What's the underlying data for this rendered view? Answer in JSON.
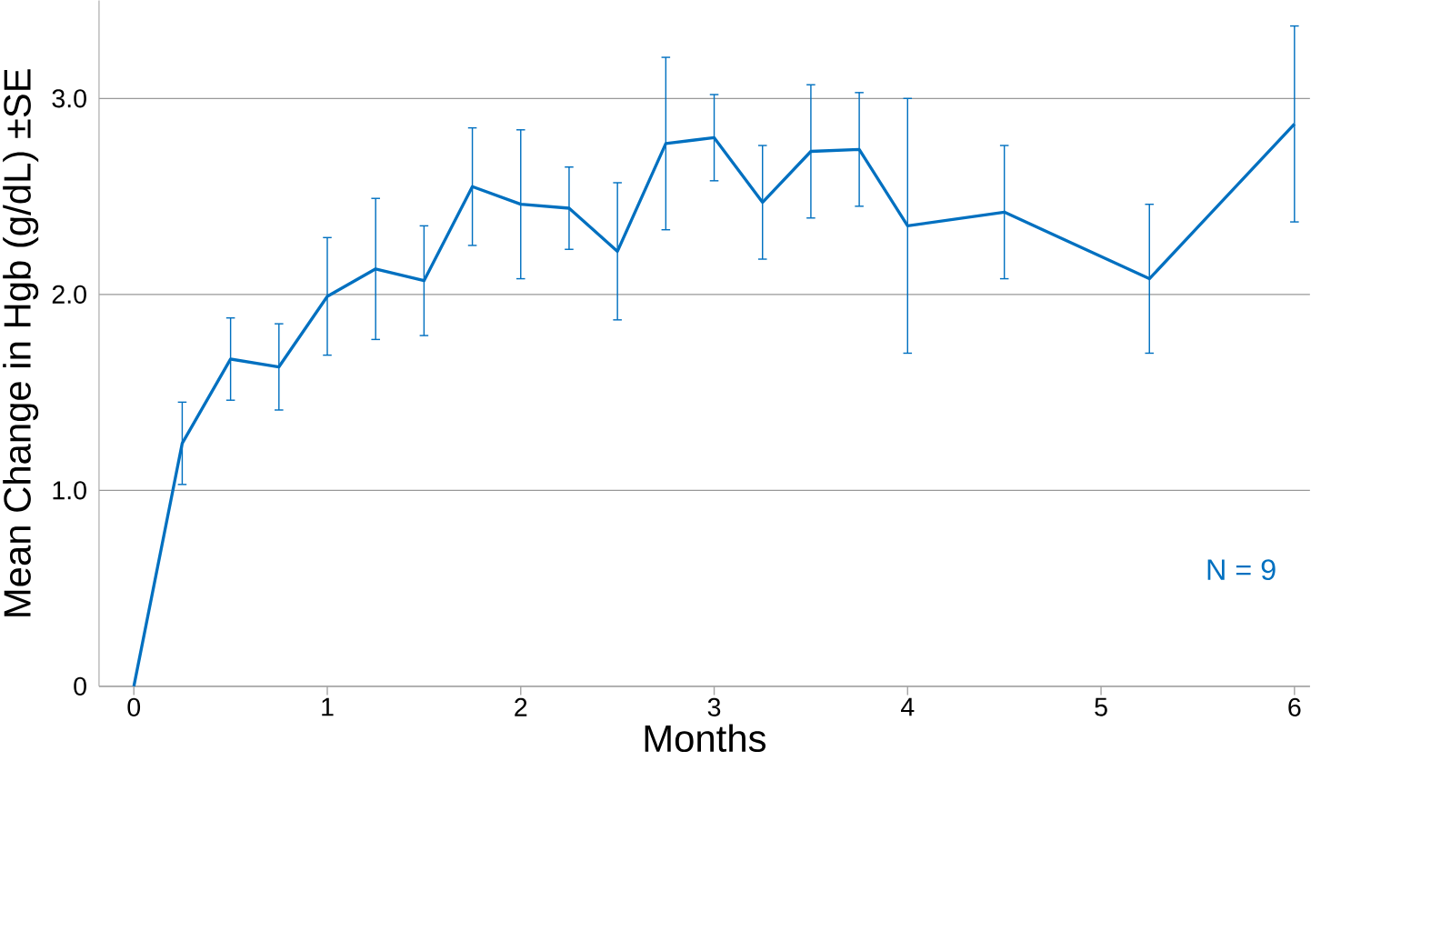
{
  "chart_data": {
    "type": "line",
    "xlabel": "Months",
    "ylabel": "Mean Change in Hgb (g/dL) ±SE",
    "annotations": [
      "N = 9"
    ],
    "x": [
      0,
      0.25,
      0.5,
      0.75,
      1,
      1.25,
      1.5,
      1.75,
      2,
      2.25,
      2.5,
      2.75,
      3,
      3.25,
      3.5,
      3.75,
      4,
      4.5,
      5.25,
      6
    ],
    "values": [
      0,
      1.24,
      1.67,
      1.63,
      1.99,
      2.13,
      2.07,
      2.55,
      2.46,
      2.44,
      2.22,
      2.77,
      2.8,
      2.47,
      2.73,
      2.74,
      2.35,
      2.42,
      2.08,
      2.87
    ],
    "errors": [
      null,
      0.21,
      0.21,
      0.22,
      0.3,
      0.36,
      0.28,
      0.3,
      0.38,
      0.21,
      0.35,
      0.44,
      0.22,
      0.29,
      0.34,
      0.29,
      0.65,
      0.34,
      0.38,
      0.5
    ],
    "color": "#0070c0",
    "marker": "none",
    "line_style": "solid",
    "grid": "y",
    "xlim": [
      -0.18,
      6.08
    ],
    "ylim": [
      0,
      3.5
    ],
    "xticks": [
      0,
      1,
      2,
      3,
      4,
      5,
      6
    ],
    "yticks": [
      0,
      {
        "value": 1,
        "label": "1.0"
      },
      {
        "value": 2,
        "label": "2.0"
      },
      {
        "value": 3,
        "label": "3.0"
      }
    ]
  }
}
